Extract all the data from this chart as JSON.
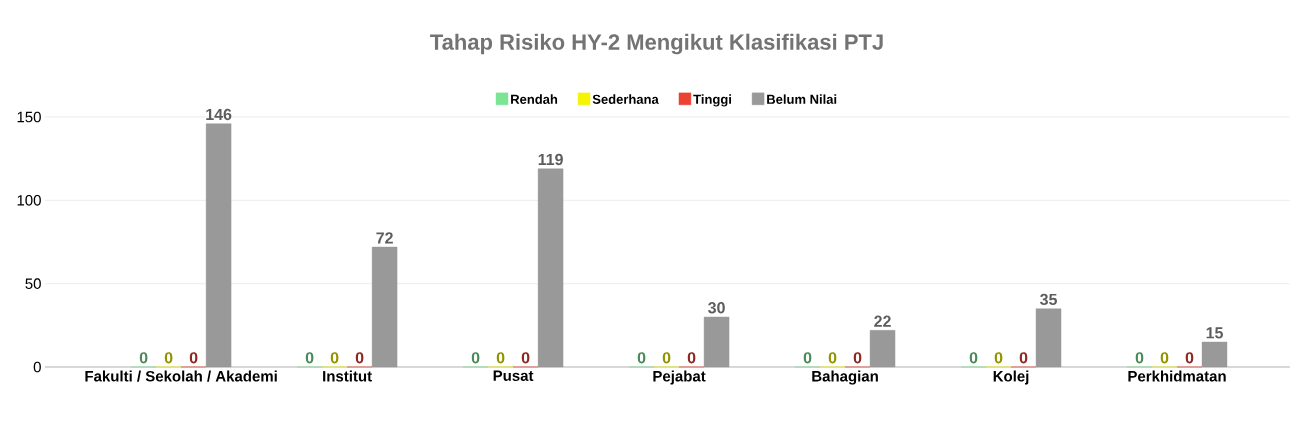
{
  "chart_data": {
    "type": "bar",
    "title": "Tahap Risiko HY-2 Mengikut Klasifikasi PTJ",
    "categories": [
      "Fakulti / Sekolah / Akademi",
      "Institut",
      "Pusat",
      "Pejabat",
      "Bahagian",
      "Kolej",
      "Perkhidmatan"
    ],
    "series": [
      {
        "name": "Rendah",
        "color": "#7be495",
        "values": [
          0,
          0,
          0,
          0,
          0,
          0,
          0
        ]
      },
      {
        "name": "Sederhana",
        "color": "#f5f500",
        "values": [
          0,
          0,
          0,
          0,
          0,
          0,
          0
        ]
      },
      {
        "name": "Tinggi",
        "color": "#ea4335",
        "values": [
          0,
          0,
          0,
          0,
          0,
          0,
          0
        ]
      },
      {
        "name": "Belum Nilai",
        "color": "#999999",
        "values": [
          146,
          72,
          119,
          30,
          22,
          35,
          15
        ]
      }
    ],
    "ylim": [
      0,
      150
    ],
    "yticks": [
      0,
      50,
      100,
      150
    ],
    "grid": "y",
    "legend": "top",
    "data_labels": true
  }
}
